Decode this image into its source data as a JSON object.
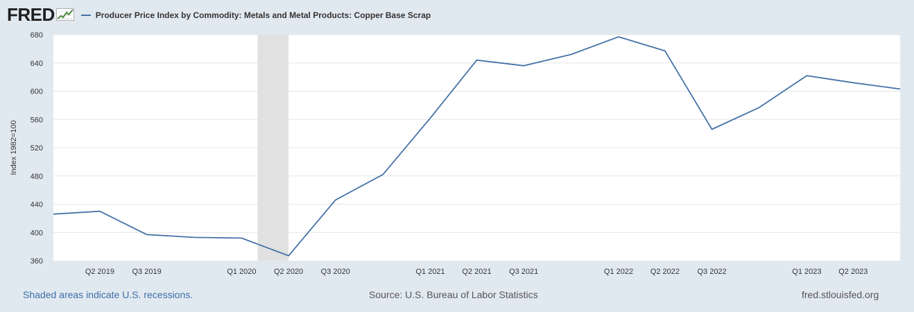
{
  "header": {
    "logo_text": "FRED",
    "legend_label": "Producer Price Index by Commodity: Metals and Metal Products: Copper Base Scrap"
  },
  "footer": {
    "recession_note": "Shaded areas indicate U.S. recessions.",
    "source": "Source: U.S. Bureau of Labor Statistics",
    "site": "fred.stlouisfed.org"
  },
  "colors": {
    "page_background": "#e1e9f0",
    "plot_background": "#ffffff",
    "series_line": "#4572a7",
    "recession_shade": "#e1e1e1",
    "gridline": "#e6e6e6",
    "logo_icon_line": "#4a8a3c"
  },
  "icons": {
    "logo": "fred-chart-logo-icon"
  },
  "chart_data": {
    "type": "line",
    "title": "",
    "xlabel": "",
    "ylabel": "Index 1982=100",
    "ylim": [
      360,
      680
    ],
    "yticks": [
      360,
      400,
      440,
      480,
      520,
      560,
      600,
      640,
      680
    ],
    "xlim": [
      "2019-01-01",
      "2023-07-01"
    ],
    "x_tick_labels": [
      {
        "label": "Q2 2019",
        "date": "2019-04-01"
      },
      {
        "label": "Q3 2019",
        "date": "2019-07-01"
      },
      {
        "label": "Q1 2020",
        "date": "2020-01-01"
      },
      {
        "label": "Q2 2020",
        "date": "2020-04-01"
      },
      {
        "label": "Q3 2020",
        "date": "2020-07-01"
      },
      {
        "label": "Q1 2021",
        "date": "2021-01-01"
      },
      {
        "label": "Q2 2021",
        "date": "2021-04-01"
      },
      {
        "label": "Q3 2021",
        "date": "2021-07-01"
      },
      {
        "label": "Q1 2022",
        "date": "2022-01-01"
      },
      {
        "label": "Q2 2022",
        "date": "2022-04-01"
      },
      {
        "label": "Q3 2022",
        "date": "2022-07-01"
      },
      {
        "label": "Q1 2023",
        "date": "2023-01-01"
      },
      {
        "label": "Q2 2023",
        "date": "2023-04-01"
      }
    ],
    "recessions": [
      {
        "start": "2020-02-01",
        "end": "2020-04-01"
      }
    ],
    "grid": true,
    "legend_position": "top",
    "series": [
      {
        "name": "Producer Price Index by Commodity: Metals and Metal Products: Copper Base Scrap",
        "x": [
          "2019-01-01",
          "2019-04-01",
          "2019-07-01",
          "2019-10-01",
          "2020-01-01",
          "2020-04-01",
          "2020-07-01",
          "2020-10-01",
          "2021-01-01",
          "2021-04-01",
          "2021-07-01",
          "2021-10-01",
          "2022-01-01",
          "2022-04-01",
          "2022-07-01",
          "2022-10-01",
          "2023-01-01",
          "2023-04-01",
          "2023-07-01"
        ],
        "values": [
          426,
          430,
          397,
          393,
          392,
          367,
          446,
          482,
          562,
          644,
          636,
          652,
          677,
          657,
          546,
          577,
          622,
          612,
          603
        ]
      }
    ]
  }
}
